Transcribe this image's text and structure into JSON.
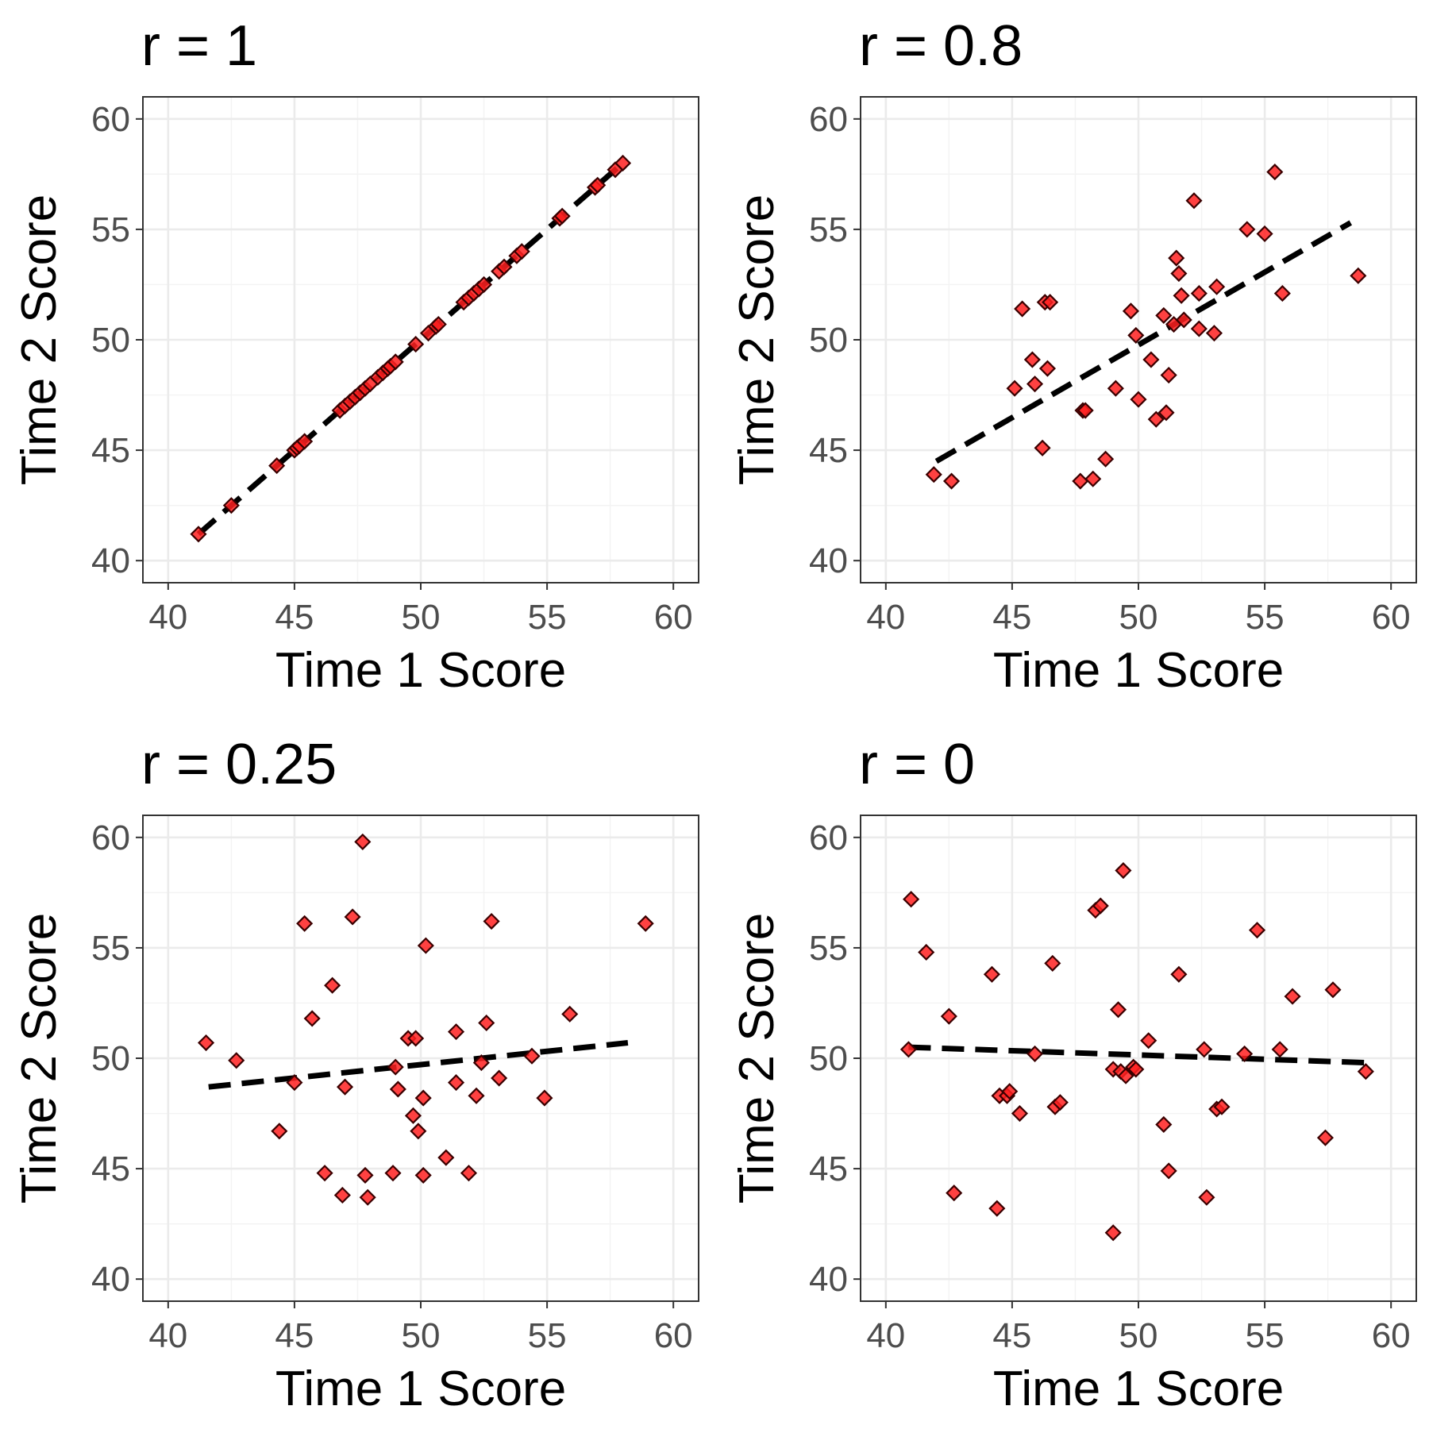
{
  "chart_data": [
    {
      "type": "scatter",
      "title": "r = 1",
      "xlabel": "Time 1 Score",
      "ylabel": "Time 2 Score",
      "xlim": [
        39,
        61
      ],
      "ylim": [
        39,
        61
      ],
      "xticks": [
        "40",
        "45",
        "50",
        "55",
        "60"
      ],
      "yticks": [
        "40",
        "45",
        "50",
        "55",
        "60"
      ],
      "xtick_values": [
        40,
        45,
        50,
        55,
        60
      ],
      "ytick_values": [
        40,
        45,
        50,
        55,
        60
      ],
      "grid": true,
      "marker": "diamond",
      "fit_line": {
        "x": [
          41.2,
          58.0
        ],
        "y": [
          41.2,
          58.0
        ],
        "style": "dashed"
      },
      "x": [
        41.2,
        42.5,
        44.3,
        45.0,
        45.1,
        45.2,
        45.4,
        46.8,
        47.0,
        47.2,
        47.4,
        47.6,
        47.8,
        48.0,
        48.3,
        48.5,
        48.7,
        48.8,
        49.0,
        49.8,
        50.3,
        50.6,
        50.7,
        51.7,
        51.9,
        52.1,
        52.3,
        52.5,
        53.1,
        53.3,
        53.8,
        54.0,
        55.5,
        55.6,
        56.9,
        57.0,
        57.7,
        58.0
      ],
      "y": [
        41.2,
        42.5,
        44.3,
        45.0,
        45.1,
        45.2,
        45.4,
        46.8,
        47.0,
        47.2,
        47.4,
        47.6,
        47.8,
        48.0,
        48.3,
        48.5,
        48.7,
        48.8,
        49.0,
        49.8,
        50.3,
        50.6,
        50.7,
        51.7,
        51.9,
        52.1,
        52.3,
        52.5,
        53.1,
        53.3,
        53.8,
        54.0,
        55.5,
        55.6,
        56.9,
        57.0,
        57.7,
        58.0
      ]
    },
    {
      "type": "scatter",
      "title": "r = 0.8",
      "xlabel": "Time 1 Score",
      "ylabel": "Time 2 Score",
      "xlim": [
        39,
        61
      ],
      "ylim": [
        39,
        61
      ],
      "xticks": [
        "40",
        "45",
        "50",
        "55",
        "60"
      ],
      "yticks": [
        "40",
        "45",
        "50",
        "55",
        "60"
      ],
      "xtick_values": [
        40,
        45,
        50,
        55,
        60
      ],
      "ytick_values": [
        40,
        45,
        50,
        55,
        60
      ],
      "grid": true,
      "marker": "diamond",
      "fit_line": {
        "x": [
          42.0,
          58.4
        ],
        "y": [
          44.5,
          55.3
        ],
        "style": "dashed"
      },
      "x": [
        41.9,
        42.6,
        45.1,
        45.4,
        45.8,
        45.9,
        46.2,
        46.3,
        46.5,
        46.4,
        47.7,
        47.8,
        47.9,
        48.2,
        48.7,
        49.1,
        49.7,
        49.9,
        50.0,
        50.5,
        50.7,
        51.0,
        51.1,
        51.2,
        51.4,
        51.5,
        51.6,
        51.7,
        51.8,
        52.2,
        52.4,
        52.4,
        53.0,
        53.1,
        54.3,
        55.0,
        55.4,
        55.7,
        58.7
      ],
      "y": [
        43.9,
        43.6,
        47.8,
        51.4,
        49.1,
        48.0,
        45.1,
        51.7,
        51.7,
        48.7,
        43.6,
        46.8,
        46.8,
        43.7,
        44.6,
        47.8,
        51.3,
        50.2,
        47.3,
        49.1,
        46.4,
        51.1,
        46.7,
        48.4,
        50.7,
        53.7,
        53.0,
        52.0,
        50.9,
        56.3,
        50.5,
        52.1,
        50.3,
        52.4,
        55.0,
        54.8,
        57.6,
        52.1,
        52.9
      ]
    },
    {
      "type": "scatter",
      "title": "r = 0.25",
      "xlabel": "Time 1 Score",
      "ylabel": "Time 2 Score",
      "xlim": [
        39,
        61
      ],
      "ylim": [
        39,
        61
      ],
      "xticks": [
        "40",
        "45",
        "50",
        "55",
        "60"
      ],
      "yticks": [
        "40",
        "45",
        "50",
        "55",
        "60"
      ],
      "xtick_values": [
        40,
        45,
        50,
        55,
        60
      ],
      "ytick_values": [
        40,
        45,
        50,
        55,
        60
      ],
      "grid": true,
      "marker": "diamond",
      "fit_line": {
        "x": [
          41.6,
          58.2
        ],
        "y": [
          48.7,
          50.7
        ],
        "style": "dashed"
      },
      "x": [
        41.5,
        42.7,
        44.4,
        45.0,
        45.4,
        45.7,
        46.2,
        46.5,
        46.9,
        47.0,
        47.3,
        47.7,
        47.8,
        47.9,
        48.9,
        49.0,
        49.1,
        49.5,
        49.7,
        49.8,
        49.9,
        50.1,
        50.1,
        50.2,
        51.0,
        51.4,
        51.4,
        51.9,
        52.2,
        52.4,
        52.6,
        52.8,
        53.1,
        54.4,
        54.9,
        55.9,
        58.9
      ],
      "y": [
        50.7,
        49.9,
        46.7,
        48.9,
        56.1,
        51.8,
        44.8,
        53.3,
        43.8,
        48.7,
        56.4,
        59.8,
        44.7,
        43.7,
        44.8,
        49.6,
        48.6,
        50.9,
        47.4,
        50.9,
        46.7,
        44.7,
        48.2,
        55.1,
        45.5,
        51.2,
        48.9,
        44.8,
        48.3,
        49.8,
        51.6,
        56.2,
        49.1,
        50.1,
        48.2,
        52.0,
        56.1
      ]
    },
    {
      "type": "scatter",
      "title": "r = 0",
      "xlabel": "Time 1 Score",
      "ylabel": "Time 2 Score",
      "xlim": [
        39,
        61
      ],
      "ylim": [
        39,
        61
      ],
      "xticks": [
        "40",
        "45",
        "50",
        "55",
        "60"
      ],
      "yticks": [
        "40",
        "45",
        "50",
        "55",
        "60"
      ],
      "xtick_values": [
        40,
        45,
        50,
        55,
        60
      ],
      "ytick_values": [
        40,
        45,
        50,
        55,
        60
      ],
      "grid": true,
      "marker": "diamond",
      "fit_line": {
        "x": [
          40.9,
          59.0
        ],
        "y": [
          50.5,
          49.8
        ],
        "style": "dashed"
      },
      "x": [
        40.9,
        41.0,
        41.6,
        42.5,
        42.7,
        44.2,
        44.4,
        44.5,
        44.8,
        44.9,
        45.3,
        45.9,
        46.6,
        46.7,
        46.9,
        48.3,
        48.5,
        49.0,
        49.0,
        49.2,
        49.3,
        49.4,
        49.5,
        49.8,
        49.9,
        50.4,
        51.0,
        51.2,
        51.6,
        52.6,
        52.7,
        53.1,
        53.3,
        54.2,
        54.7,
        55.6,
        56.1,
        57.4,
        57.7,
        59.0
      ],
      "y": [
        50.4,
        57.2,
        54.8,
        51.9,
        43.9,
        53.8,
        43.2,
        48.3,
        48.3,
        48.5,
        47.5,
        50.2,
        54.3,
        47.8,
        48.0,
        56.7,
        56.9,
        42.1,
        49.5,
        52.2,
        49.4,
        58.5,
        49.2,
        49.6,
        49.5,
        50.8,
        47.0,
        44.9,
        53.8,
        50.4,
        43.7,
        47.7,
        47.8,
        50.2,
        55.8,
        50.4,
        52.8,
        46.4,
        53.1,
        49.4
      ]
    }
  ]
}
